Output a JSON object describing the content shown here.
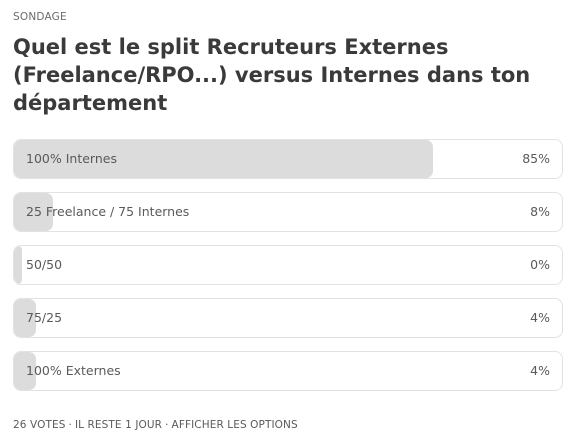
{
  "poll": {
    "kicker": "SONDAGE",
    "question": "Quel est le split Recruteurs Externes (Freelance/RPO...) versus Internes dans ton département",
    "options": [
      {
        "label": "100% Internes",
        "percent_text": "85%",
        "percent": 85
      },
      {
        "label": "25 Freelance / 75 Internes",
        "percent_text": "8%",
        "percent": 8
      },
      {
        "label": "50/50",
        "percent_text": "0%",
        "percent": 0
      },
      {
        "label": "75/25",
        "percent_text": "4%",
        "percent": 4
      },
      {
        "label": "100% Externes",
        "percent_text": "4%",
        "percent": 4
      }
    ],
    "footer": {
      "votes": "26 VOTES",
      "remaining": "IL RESTE 1 JOUR",
      "show_options": "AFFICHER LES OPTIONS",
      "separator": "·"
    }
  },
  "colors": {
    "fill": "#dcdcdc",
    "border": "#e2e2e2",
    "text": "#3a3a3a"
  }
}
